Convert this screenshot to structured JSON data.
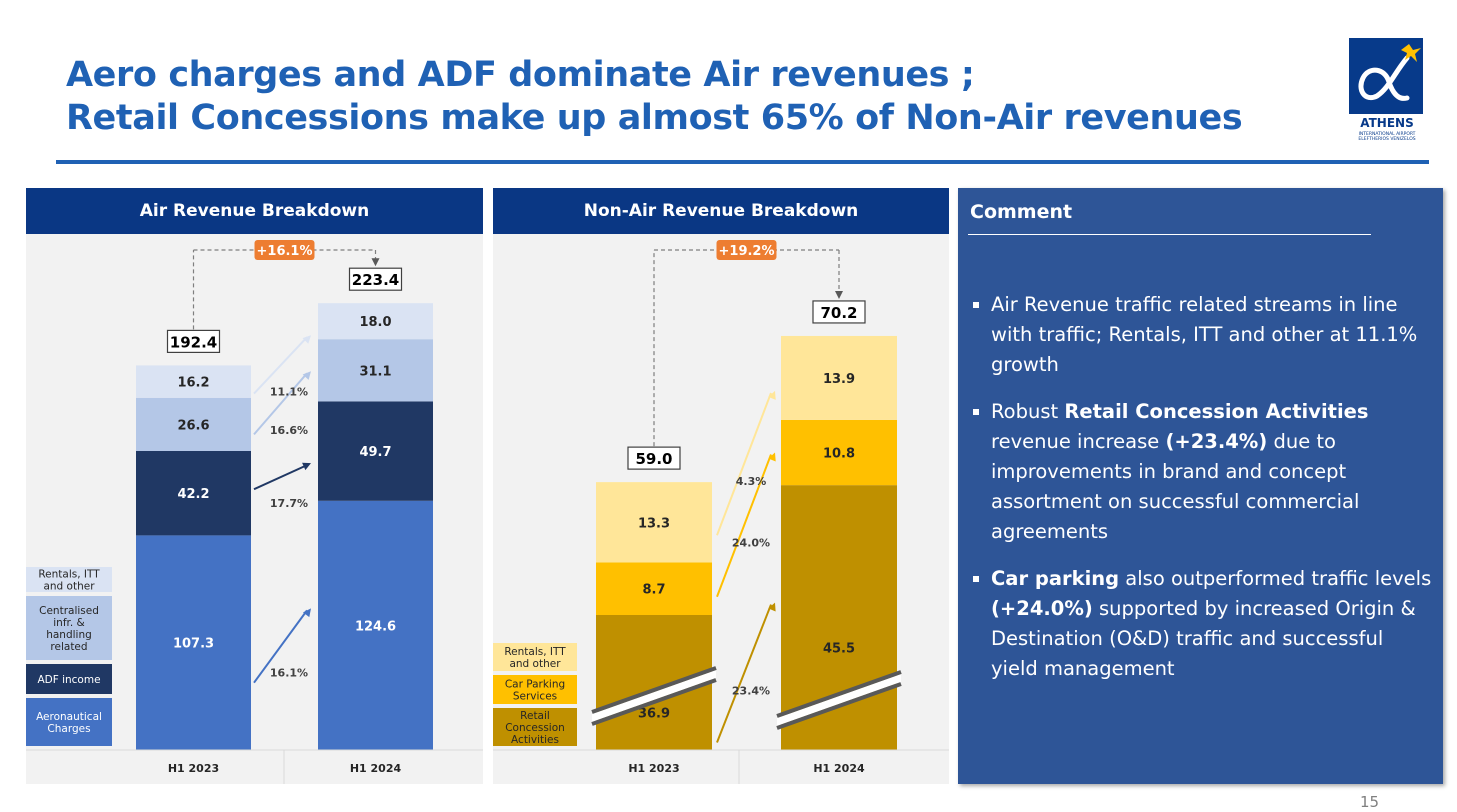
{
  "title": {
    "line1": "Aero charges and ADF dominate Air revenues ;",
    "line2": "Retail Concessions make up almost 65% of Non-Air revenues"
  },
  "logo": {
    "name": "ATHENS",
    "sub1": "INTERNATIONAL AIRPORT",
    "sub2": "ELEFTHERIOS VENIZELOS"
  },
  "page_number": "15",
  "colors": {
    "header_navy": "#0a3784",
    "title_blue": "#1f61b4",
    "comment_bg": "#2e5597",
    "growth_badge": "#ed7d31"
  },
  "chart_data": [
    {
      "type": "bar",
      "stacked": true,
      "title": "Air Revenue Breakdown",
      "categories": [
        "H1 2023",
        "H1 2024"
      ],
      "series": [
        {
          "name": "Aeronautical Charges",
          "values": [
            107.3,
            124.6
          ],
          "color": "#4472c4",
          "growth": "16.1%",
          "text_color": "#ffffff"
        },
        {
          "name": "ADF income",
          "values": [
            42.2,
            49.7
          ],
          "color": "#203864",
          "growth": "17.7%",
          "text_color": "#ffffff"
        },
        {
          "name": "Centralised infr. & handling related",
          "values": [
            26.6,
            31.1
          ],
          "color": "#b4c7e7",
          "growth": "16.6%",
          "text_color": "#262626"
        },
        {
          "name": "Rentals, ITT and other",
          "values": [
            16.2,
            18.0
          ],
          "color": "#dae3f3",
          "growth": "11.1%",
          "text_color": "#262626"
        }
      ],
      "totals": [
        "192.4",
        "223.4"
      ],
      "total_growth": "+16.1%",
      "ylim": [
        0,
        223.4
      ],
      "axis_break": false
    },
    {
      "type": "bar",
      "stacked": true,
      "title": "Non-Air Revenue Breakdown",
      "categories": [
        "H1 2023",
        "H1 2024"
      ],
      "series": [
        {
          "name": "Retail Concession Activities",
          "values": [
            36.9,
            45.5
          ],
          "color": "#bf9000",
          "growth": "23.4%",
          "text_color": "#262626"
        },
        {
          "name": "Car Parking Services",
          "values": [
            8.7,
            10.8
          ],
          "color": "#ffc000",
          "growth": "24.0%",
          "text_color": "#262626"
        },
        {
          "name": "Rentals, ITT and other",
          "values": [
            13.3,
            13.9
          ],
          "color": "#ffe699",
          "growth": "4.3%",
          "text_color": "#262626"
        }
      ],
      "totals": [
        "59.0",
        "70.2"
      ],
      "total_growth": "+19.2%",
      "axis_break": true
    }
  ],
  "comment": {
    "title": "Comment",
    "bullets": [
      [
        {
          "t": "Air Revenue traffic related streams in line with traffic; Rentals, ITT and other at 11.1% growth",
          "b": false
        }
      ],
      [
        {
          "t": "Robust ",
          "b": false
        },
        {
          "t": "Retail Concession Activities",
          "b": true
        },
        {
          "t": " revenue increase ",
          "b": false
        },
        {
          "t": "(+23.4%)",
          "b": true
        },
        {
          "t": " due to improvements in brand and concept assortment on successful commercial agreements",
          "b": false
        }
      ],
      [
        {
          "t": "Car parking",
          "b": true
        },
        {
          "t": " also outperformed traffic levels ",
          "b": false
        },
        {
          "t": "(+24.0%)",
          "b": true
        },
        {
          "t": " supported by increased Origin & Destination (O&D) traffic and successful yield management",
          "b": false
        }
      ]
    ]
  }
}
